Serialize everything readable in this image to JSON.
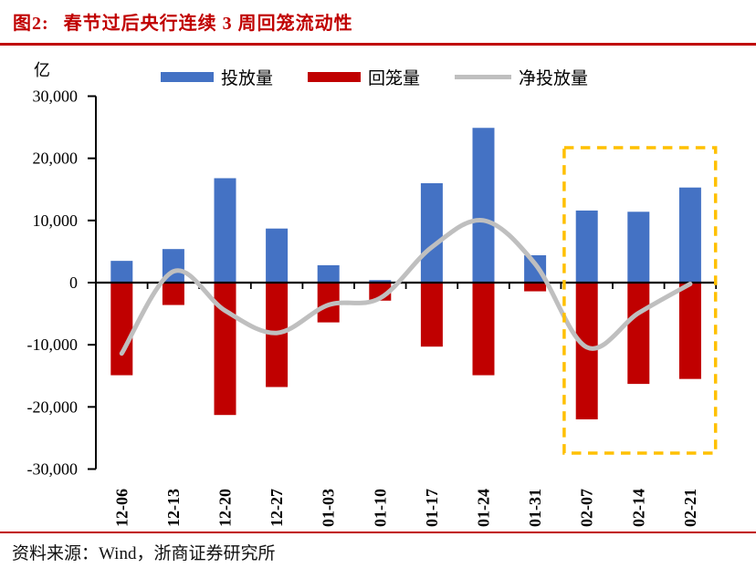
{
  "header": {
    "figure_label": "图2:",
    "title": "春节过后央行连续 3 周回笼流动性"
  },
  "footer": {
    "source": "资料来源：Wind，浙商证券研究所"
  },
  "colors": {
    "accent_red": "#C00000",
    "bar_blue": "#4472C4",
    "bar_red": "#C00000",
    "line_gray": "#BFBFBF",
    "highlight_yellow": "#FFC000",
    "axis_black": "#000000"
  },
  "chart_data": {
    "type": "bar",
    "unit_label": "亿",
    "categories": [
      "12-06",
      "12-13",
      "12-20",
      "12-27",
      "01-03",
      "01-10",
      "01-17",
      "01-24",
      "01-31",
      "02-07",
      "02-14",
      "02-21"
    ],
    "series": [
      {
        "name": "投放量",
        "type": "bar",
        "color": "#4472C4",
        "values": [
          3500,
          5400,
          16800,
          8700,
          2800,
          400,
          16000,
          24900,
          4400,
          11600,
          11400,
          15300
        ]
      },
      {
        "name": "回笼量",
        "type": "bar",
        "color": "#C00000",
        "values": [
          -14900,
          -3600,
          -21300,
          -16800,
          -6400,
          -2900,
          -10300,
          -14900,
          -1400,
          -22000,
          -16300,
          -15500
        ]
      },
      {
        "name": "净投放量",
        "type": "line",
        "color": "#BFBFBF",
        "values": [
          -11400,
          1800,
          -4500,
          -8100,
          -3600,
          -2500,
          5700,
          10000,
          3000,
          -10400,
          -4900,
          -200
        ]
      }
    ],
    "ylim": [
      -30000,
      30000
    ],
    "y_tick_values": [
      30000,
      20000,
      10000,
      0,
      -10000,
      -20000,
      -30000
    ],
    "y_ticks": [
      "30,000",
      "20,000",
      "10,000",
      "0",
      "-10,000",
      "-20,000",
      "-30,000"
    ],
    "grid": false,
    "legend_position": "top",
    "highlight_box": {
      "from_category": "02-07",
      "to_category": "02-21",
      "style": "dashed",
      "color": "#FFC000"
    }
  }
}
